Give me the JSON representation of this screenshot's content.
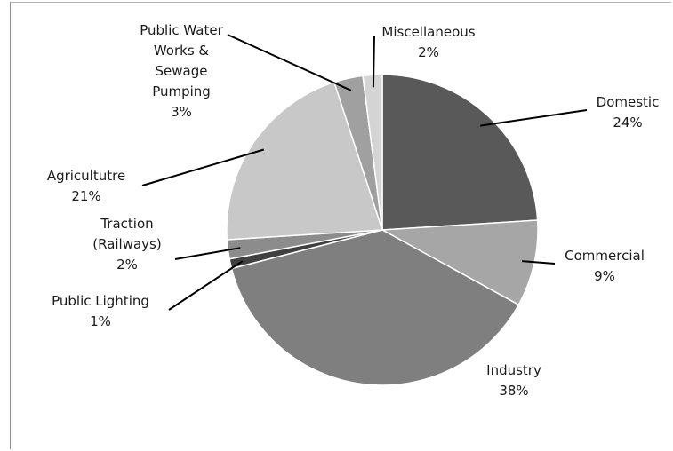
{
  "chart_data": {
    "type": "pie",
    "title": "",
    "slices": [
      {
        "label": "Domestic",
        "lines": [
          "Domestic"
        ],
        "value": 24,
        "pct_label": "24%",
        "color": "#595959"
      },
      {
        "label": "Commercial",
        "lines": [
          "Commercial"
        ],
        "value": 9,
        "pct_label": "9%",
        "color": "#a6a6a6"
      },
      {
        "label": "Industry",
        "lines": [
          "Industry"
        ],
        "value": 38,
        "pct_label": "38%",
        "color": "#7f7f7f"
      },
      {
        "label": "Public Lighting",
        "lines": [
          "Public Lighting"
        ],
        "value": 1,
        "pct_label": "1%",
        "color": "#404040"
      },
      {
        "label": "Traction (Railways)",
        "lines": [
          "Traction",
          "(Railways)"
        ],
        "value": 2,
        "pct_label": "2%",
        "color": "#8c8c8c"
      },
      {
        "label": "Agricultutre",
        "lines": [
          "Agricultutre"
        ],
        "value": 21,
        "pct_label": "21%",
        "color": "#c8c8c8"
      },
      {
        "label": "Public Water Works & Sewage Pumping",
        "lines": [
          "Public Water",
          "Works &",
          "Sewage",
          "Pumping"
        ],
        "value": 3,
        "pct_label": "3%",
        "color": "#a0a0a0"
      },
      {
        "label": "Miscellaneous",
        "lines": [
          "Miscellaneous"
        ],
        "value": 2,
        "pct_label": "2%",
        "color": "#d4d4d4"
      }
    ]
  }
}
